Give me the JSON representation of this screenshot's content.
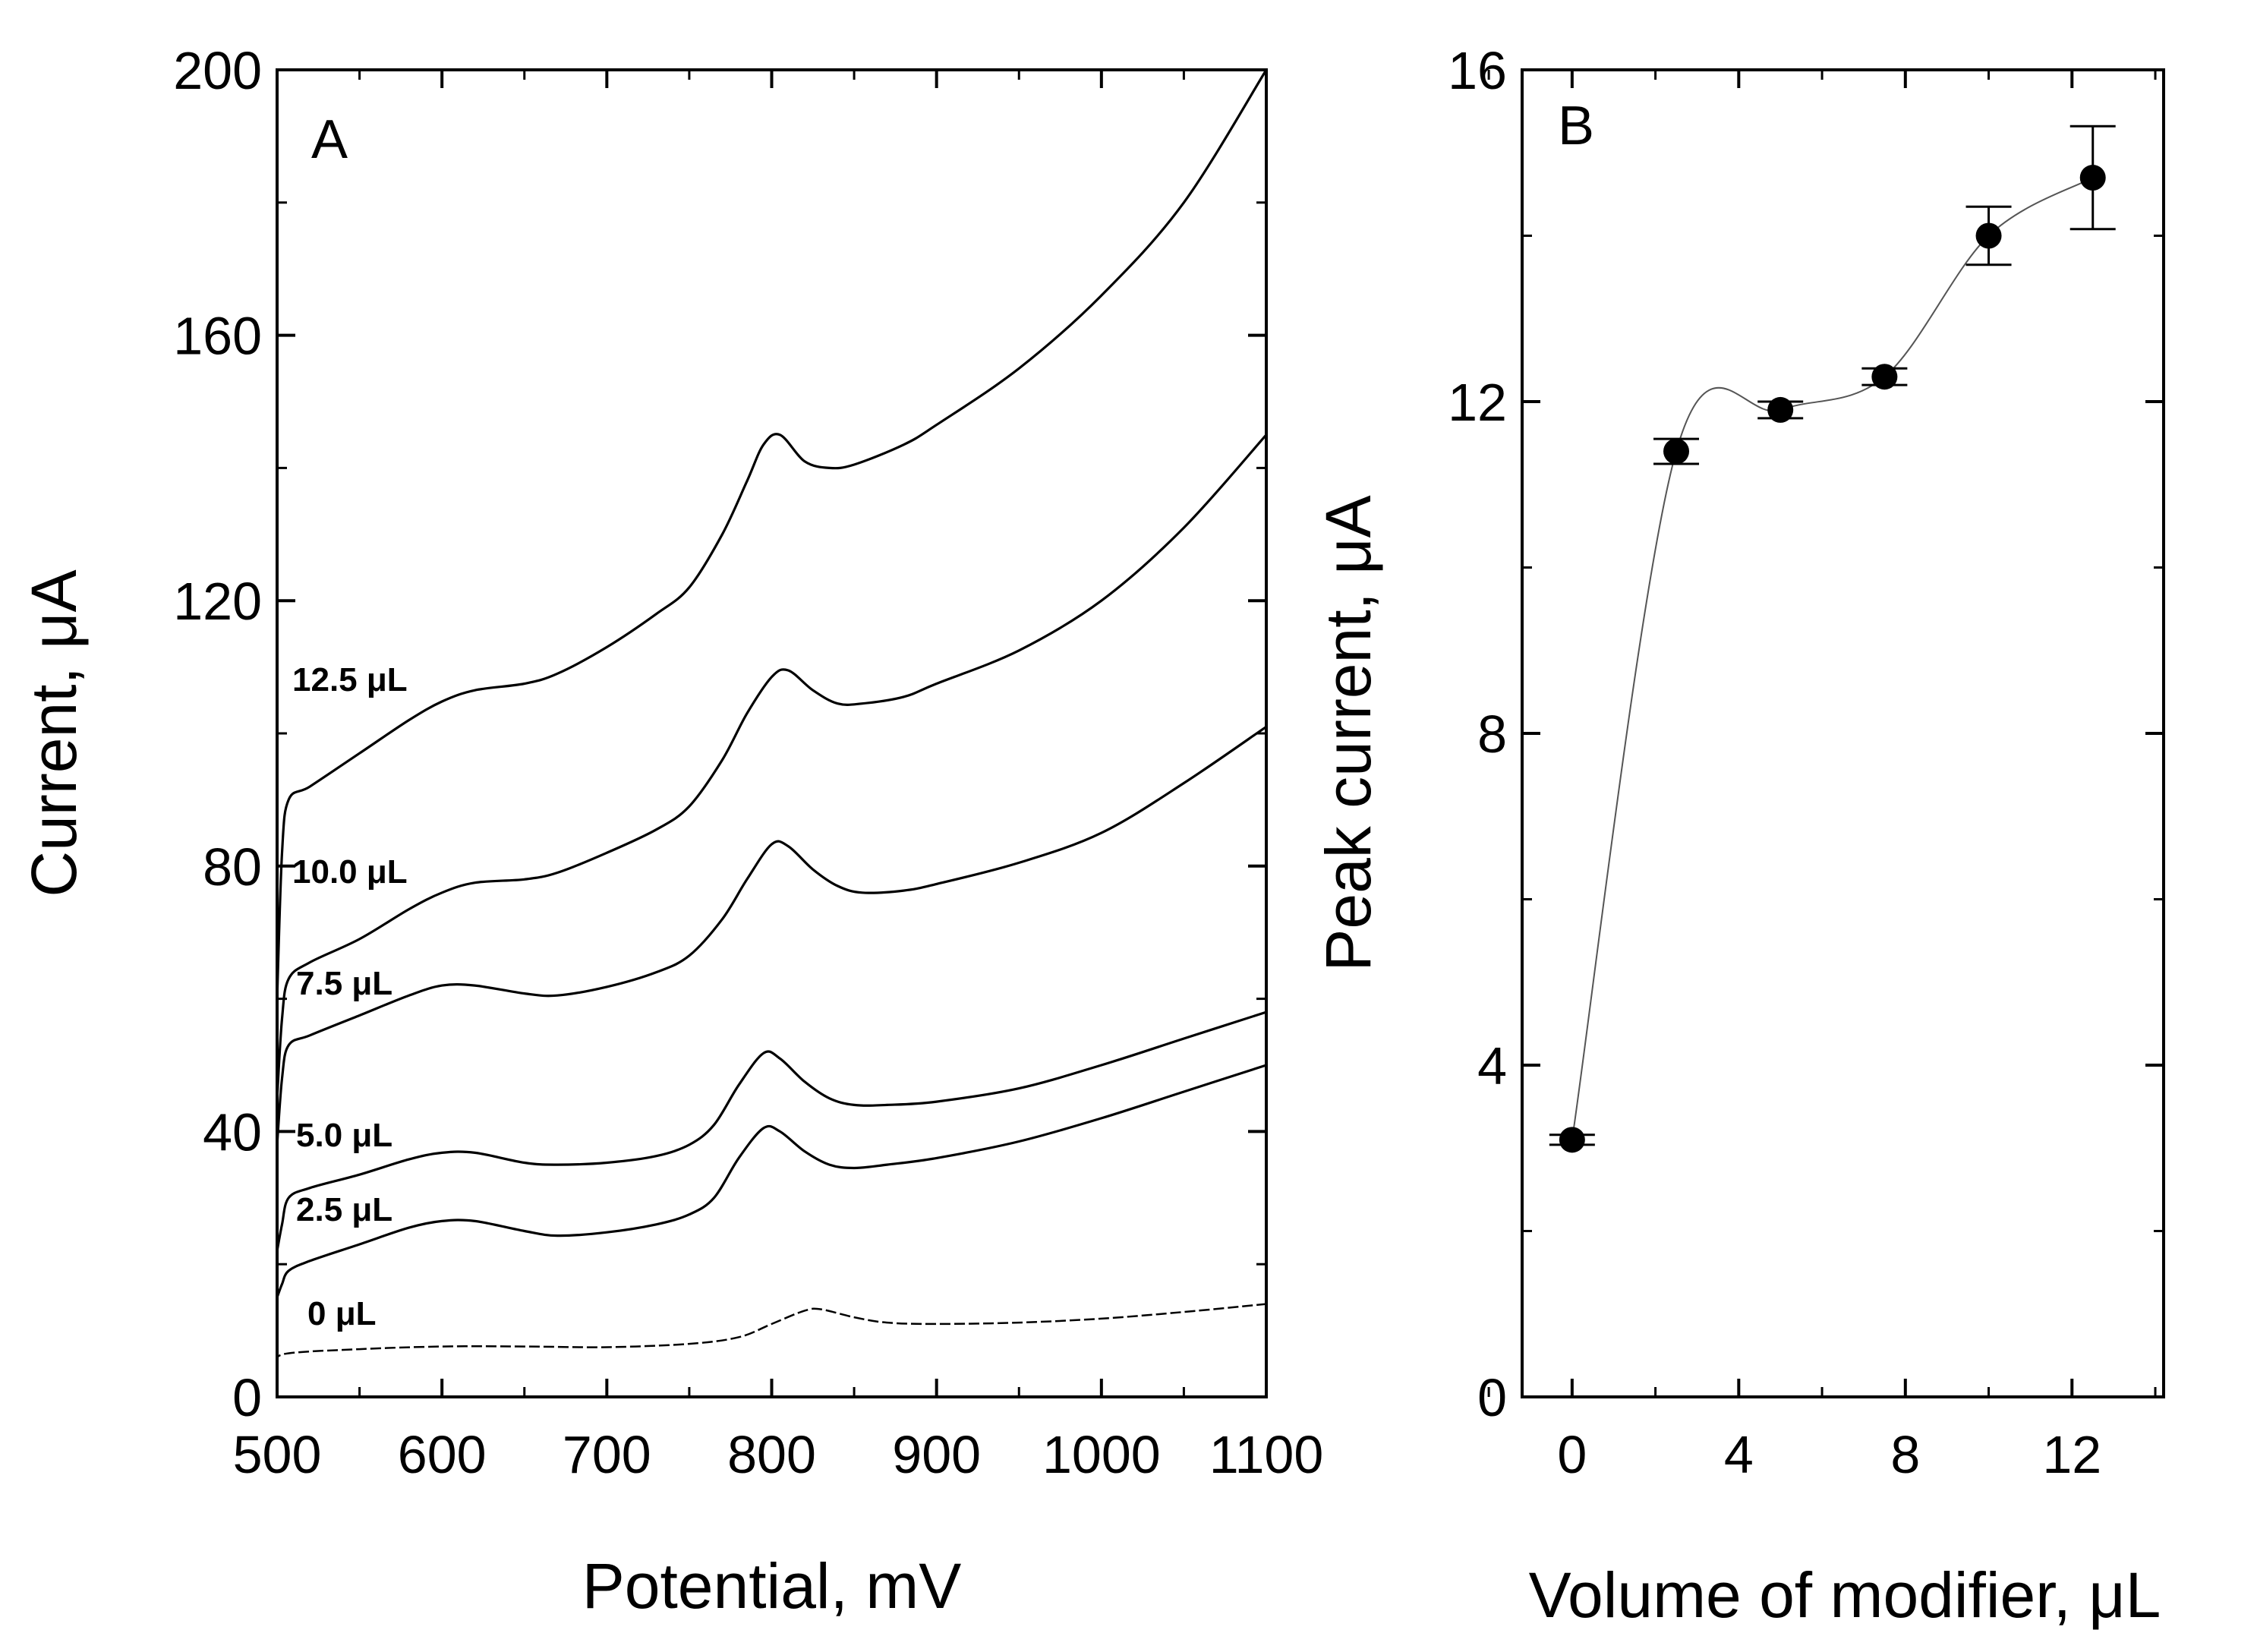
{
  "chart_data": [
    {
      "type": "line",
      "panel_label": "A",
      "xlabel": "Potential, mV",
      "ylabel": "Current, μA",
      "xlim": [
        500,
        1100
      ],
      "ylim": [
        0,
        200
      ],
      "x_ticks": [
        500,
        600,
        700,
        800,
        900,
        1000,
        1100
      ],
      "y_ticks": [
        0,
        40,
        80,
        120,
        160,
        200
      ],
      "grid": false,
      "legend": "inline labels near curve starts",
      "series": [
        {
          "name": "0 μL",
          "line_style": "dashed",
          "x": [
            500,
            505,
            550,
            600,
            650,
            700,
            750,
            780,
            800,
            820,
            830,
            850,
            870,
            900,
            950,
            1000,
            1050,
            1100
          ],
          "y": [
            5,
            6.5,
            7.2,
            7.6,
            7.6,
            7.5,
            8,
            9,
            11,
            13,
            13.2,
            12,
            11.2,
            11,
            11.2,
            11.8,
            12.8,
            14
          ]
        },
        {
          "name": "2.5 μL",
          "line_style": "solid",
          "x": [
            500,
            503,
            507,
            520,
            550,
            580,
            600,
            620,
            650,
            670,
            700,
            730,
            750,
            765,
            780,
            795,
            805,
            820,
            835,
            850,
            870,
            900,
            950,
            1000,
            1050,
            1100
          ],
          "y": [
            15,
            17,
            19,
            20.5,
            23,
            25.5,
            26.5,
            26.5,
            25,
            24.3,
            24.8,
            26,
            27.5,
            30,
            36,
            40.5,
            40,
            37,
            35,
            34.5,
            35,
            36,
            38.5,
            42,
            46,
            50
          ]
        },
        {
          "name": "5.0 μL",
          "line_style": "solid",
          "x": [
            500,
            503,
            507,
            520,
            550,
            580,
            600,
            620,
            650,
            670,
            700,
            730,
            750,
            765,
            780,
            795,
            805,
            820,
            835,
            850,
            870,
            900,
            950,
            1000,
            1050,
            1100
          ],
          "y": [
            22,
            26,
            30,
            31.5,
            33.5,
            35.8,
            36.8,
            36.8,
            35.3,
            35,
            35.3,
            36.3,
            38,
            41,
            47,
            51.8,
            51,
            47.5,
            45,
            44,
            44,
            44.5,
            46.5,
            50,
            54,
            58
          ]
        },
        {
          "name": "7.5 μL",
          "line_style": "solid",
          "x": [
            500,
            503,
            507,
            520,
            550,
            580,
            600,
            620,
            650,
            670,
            700,
            730,
            750,
            770,
            785,
            800,
            810,
            825,
            840,
            855,
            880,
            900,
            950,
            1000,
            1050,
            1100
          ],
          "y": [
            38,
            48,
            53,
            54.5,
            57.5,
            60.5,
            62,
            62,
            60.8,
            60.5,
            61.8,
            64,
            66.5,
            72,
            78,
            83.3,
            83,
            79.5,
            77,
            76,
            76.3,
            77.3,
            80.5,
            85,
            92.5,
            101
          ]
        },
        {
          "name": "10.0 μL",
          "line_style": "solid",
          "x": [
            500,
            503,
            507,
            520,
            550,
            580,
            600,
            620,
            650,
            670,
            700,
            730,
            750,
            770,
            785,
            800,
            810,
            825,
            840,
            855,
            880,
            900,
            950,
            1000,
            1050,
            1100
          ],
          "y": [
            45,
            57,
            63,
            65.5,
            69,
            73.5,
            76,
            77.5,
            78,
            79,
            82,
            85.5,
            89,
            96,
            103,
            108.5,
            109.5,
            106.5,
            104.5,
            104.5,
            105.5,
            107.5,
            112.5,
            120,
            131,
            145
          ]
        },
        {
          "name": "12.5 μL",
          "line_style": "solid",
          "x": [
            500,
            503,
            507,
            520,
            550,
            580,
            600,
            620,
            650,
            670,
            700,
            730,
            750,
            770,
            785,
            795,
            805,
            820,
            835,
            850,
            880,
            900,
            950,
            1000,
            1050,
            1100
          ],
          "y": [
            60,
            82,
            90,
            92,
            97,
            102,
            104.8,
            106.5,
            107.5,
            109,
            113,
            118,
            122,
            130,
            138,
            143.5,
            145,
            141,
            140,
            140.5,
            143.5,
            146.5,
            155,
            166,
            180,
            200
          ]
        }
      ]
    },
    {
      "type": "scatter",
      "panel_label": "B",
      "xlabel": "Volume of modifier, μL",
      "ylabel": "Peak current, μA",
      "xlim": [
        -1.2,
        14.2
      ],
      "ylim": [
        0,
        16
      ],
      "x_ticks": [
        0,
        4,
        8,
        12
      ],
      "y_ticks": [
        0,
        4,
        8,
        12,
        16
      ],
      "grid": false,
      "fit_line": "thin smooth curve through the points",
      "x": [
        0,
        2.5,
        5,
        7.5,
        10,
        12.5
      ],
      "y": [
        3.1,
        11.4,
        11.9,
        12.3,
        14.0,
        14.7
      ],
      "error": [
        0.06,
        0.15,
        0.1,
        0.1,
        0.35,
        0.62
      ]
    }
  ]
}
